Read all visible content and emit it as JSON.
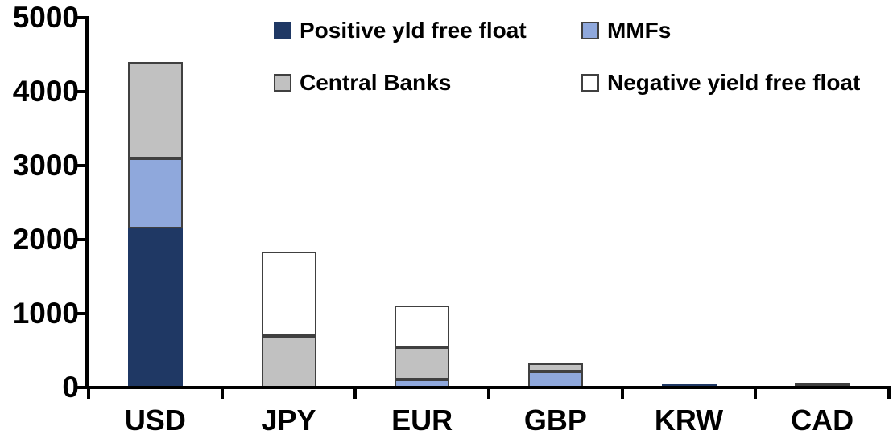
{
  "chart_data": {
    "type": "bar",
    "stacked": true,
    "title": "",
    "categories": [
      "USD",
      "JPY",
      "EUR",
      "GBP",
      "KRW",
      "CAD"
    ],
    "series": [
      {
        "name": "Positive yld free float",
        "color": "#1F3864",
        "border_color": "#1F3864",
        "values": [
          2150,
          0,
          0,
          0,
          45,
          0
        ]
      },
      {
        "name": "MMFs",
        "color": "#8FA8DC",
        "border_color": "#404040",
        "values": [
          950,
          0,
          110,
          220,
          0,
          25
        ]
      },
      {
        "name": "Central Banks",
        "color": "#C1C1C1",
        "border_color": "#404040",
        "values": [
          1300,
          700,
          430,
          110,
          0,
          35
        ]
      },
      {
        "name": "Negative yield free float",
        "color": "#FFFFFF",
        "border_color": "#404040",
        "values": [
          0,
          1140,
          570,
          0,
          0,
          0
        ]
      }
    ],
    "ylim": [
      0,
      5000
    ],
    "yticks": [
      0,
      1000,
      2000,
      3000,
      4000,
      5000
    ],
    "ytick_labels": [
      "0",
      "1000",
      "2000",
      "3000",
      "4000",
      "5000"
    ],
    "xlabel": "",
    "ylabel": "",
    "legend_position": "top-inside",
    "legend_layout_rows": 2,
    "grid": false,
    "axis_color": "#000000",
    "text_color": "#000000",
    "background": "#FFFFFF"
  }
}
